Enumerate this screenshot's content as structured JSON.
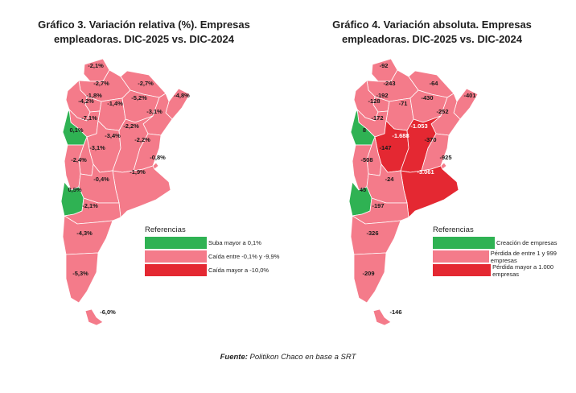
{
  "colors": {
    "green": "#2fb253",
    "pink": "#f47b8a",
    "red": "#e42832"
  },
  "maps": [
    {
      "title_line1": "Gráfico 3. Variación relativa (%). Empresas",
      "title_line2": "empleadoras. DIC-2025 vs. DIC-2024",
      "legend_title": "Referencias",
      "legend": [
        {
          "label": "Suba mayor a 0,1%",
          "color": "green"
        },
        {
          "label": "Caída entre -0,1% y -9,9%",
          "color": "pink"
        },
        {
          "label": "Caída mayor a -10,0%",
          "color": "red"
        }
      ],
      "provinces": [
        {
          "name": "jujuy",
          "value": "-2,1%",
          "category": "pink"
        },
        {
          "name": "salta",
          "value": "-2,7%",
          "category": "pink"
        },
        {
          "name": "formosa",
          "value": "-2,7%",
          "category": "pink"
        },
        {
          "name": "misiones",
          "value": "-4,8%",
          "category": "pink"
        },
        {
          "name": "tucuman",
          "value": "-1,8%",
          "category": "pink"
        },
        {
          "name": "catamarca",
          "value": "-4,2%",
          "category": "pink"
        },
        {
          "name": "santiago-del-estero",
          "value": "-1,4%",
          "category": "pink"
        },
        {
          "name": "chaco",
          "value": "-5,2%",
          "category": "pink"
        },
        {
          "name": "corrientes",
          "value": "-3,1%",
          "category": "pink"
        },
        {
          "name": "la-rioja",
          "value": "-7,1%",
          "category": "pink"
        },
        {
          "name": "san-juan",
          "value": "0,1%",
          "category": "green"
        },
        {
          "name": "cordoba",
          "value": "-3,4%",
          "category": "pink"
        },
        {
          "name": "santa-fe",
          "value": "-2,2%",
          "category": "pink"
        },
        {
          "name": "entre-rios",
          "value": "-2,2%",
          "category": "pink"
        },
        {
          "name": "san-luis",
          "value": "-3,1%",
          "category": "pink"
        },
        {
          "name": "mendoza",
          "value": "-2,4%",
          "category": "pink"
        },
        {
          "name": "caba",
          "value": "-0,8%",
          "category": "pink"
        },
        {
          "name": "buenos-aires",
          "value": "-1,9%",
          "category": "pink"
        },
        {
          "name": "la-pampa",
          "value": "-0,4%",
          "category": "pink"
        },
        {
          "name": "neuquen",
          "value": "0,5%",
          "category": "green"
        },
        {
          "name": "rio-negro",
          "value": "-2,1%",
          "category": "pink"
        },
        {
          "name": "chubut",
          "value": "-4,3%",
          "category": "pink"
        },
        {
          "name": "santa-cruz",
          "value": "-5,3%",
          "category": "pink"
        },
        {
          "name": "tierra-del-fuego",
          "value": "-6,0%",
          "category": "pink"
        }
      ]
    },
    {
      "title_line1": "Gráfico 4. Variación absoluta. Empresas",
      "title_line2": "empleadoras. DIC-2025 vs. DIC-2024",
      "legend_title": "Referencias",
      "legend": [
        {
          "label": "Creación de empresas",
          "color": "green"
        },
        {
          "label": "Pérdida de entre 1 y 999 empresas",
          "color": "pink"
        },
        {
          "label": "Pérdida mayor a 1.000 empresas",
          "color": "red"
        }
      ],
      "provinces": [
        {
          "name": "jujuy",
          "value": "-92",
          "category": "pink"
        },
        {
          "name": "salta",
          "value": "-243",
          "category": "pink"
        },
        {
          "name": "formosa",
          "value": "-64",
          "category": "pink"
        },
        {
          "name": "misiones",
          "value": "-401",
          "category": "pink"
        },
        {
          "name": "tucuman",
          "value": "-192",
          "category": "pink"
        },
        {
          "name": "catamarca",
          "value": "-128",
          "category": "pink"
        },
        {
          "name": "santiago-del-estero",
          "value": "-71",
          "category": "pink"
        },
        {
          "name": "chaco",
          "value": "-430",
          "category": "pink"
        },
        {
          "name": "corrientes",
          "value": "-252",
          "category": "pink"
        },
        {
          "name": "la-rioja",
          "value": "-172",
          "category": "pink"
        },
        {
          "name": "san-juan",
          "value": "8",
          "category": "green"
        },
        {
          "name": "cordoba",
          "value": "-1.688",
          "category": "red"
        },
        {
          "name": "santa-fe",
          "value": "-1.053",
          "category": "red"
        },
        {
          "name": "entre-rios",
          "value": "-370",
          "category": "pink"
        },
        {
          "name": "san-luis",
          "value": "-147",
          "category": "pink"
        },
        {
          "name": "mendoza",
          "value": "-508",
          "category": "pink"
        },
        {
          "name": "caba",
          "value": "-925",
          "category": "pink"
        },
        {
          "name": "buenos-aires",
          "value": "-3.061",
          "category": "red"
        },
        {
          "name": "la-pampa",
          "value": "-24",
          "category": "pink"
        },
        {
          "name": "neuquen",
          "value": "45",
          "category": "green"
        },
        {
          "name": "rio-negro",
          "value": "-197",
          "category": "pink"
        },
        {
          "name": "chubut",
          "value": "-326",
          "category": "pink"
        },
        {
          "name": "santa-cruz",
          "value": "-209",
          "category": "pink"
        },
        {
          "name": "tierra-del-fuego",
          "value": "-146",
          "category": "pink"
        }
      ]
    }
  ],
  "source": {
    "label": "Fuente:",
    "text": " Politikon Chaco en base a SRT"
  }
}
